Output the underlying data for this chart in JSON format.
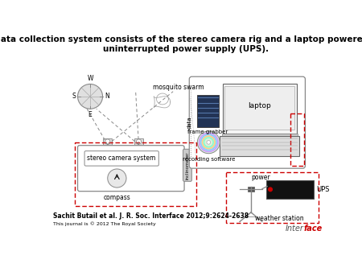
{
  "title": "The data collection system consists of the stereo camera rig and a laptop powered by an\nuninterrupted power supply (UPS).",
  "title_fontsize": 7.5,
  "title_fontweight": "bold",
  "citation": "Sachit Butail et al. J. R. Soc. Interface 2012;9:2624-2638",
  "footer": "This journal is © 2012 The Royal Society",
  "bg_color": "#ffffff",
  "labels": {
    "mosquito_swarm": "mosquito swarm",
    "laptop": "laptop",
    "frame_grabber": "frame grabber",
    "recording_software": "recording software",
    "stereo_camera": "stereo camera system",
    "inclinometer": "inclinometer",
    "compass": "compass",
    "data": "data",
    "power": "power",
    "UPS": "UPS",
    "weather_station": "weather station"
  },
  "compass_labels": {
    "N": "N",
    "S": "S",
    "E": "E",
    "W": "W"
  }
}
